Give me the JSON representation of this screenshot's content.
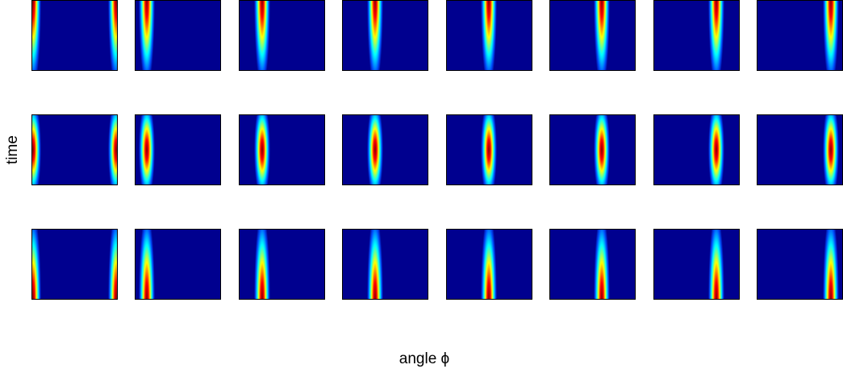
{
  "x_label": "angle ϕ",
  "y_label": "time"
}
